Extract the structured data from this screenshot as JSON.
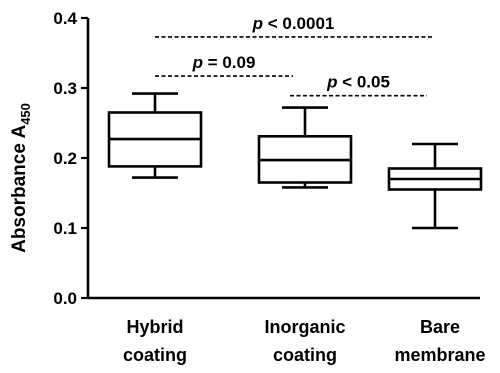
{
  "chart_data": {
    "type": "box",
    "ylabel": "Absorbance A",
    "ylabel_subscript": "450",
    "ylim": [
      0,
      0.4
    ],
    "yticks": [
      0.0,
      0.1,
      0.2,
      0.3,
      0.4
    ],
    "ytick_labels": [
      "0.0",
      "0.1",
      "0.2",
      "0.3",
      "0.4"
    ],
    "grid": false,
    "categories": [
      {
        "line1": "Hybrid",
        "line2": "coating"
      },
      {
        "line1": "Inorganic",
        "line2": "coating"
      },
      {
        "line1": "Bare",
        "line2": "membrane"
      }
    ],
    "boxes": [
      {
        "min": 0.172,
        "q1": 0.188,
        "median": 0.227,
        "q3": 0.265,
        "max": 0.292
      },
      {
        "min": 0.158,
        "q1": 0.165,
        "median": 0.197,
        "q3": 0.231,
        "max": 0.272
      },
      {
        "min": 0.1,
        "q1": 0.155,
        "median": 0.17,
        "q3": 0.185,
        "max": 0.22
      }
    ],
    "significance": [
      {
        "from": 0,
        "to": 2,
        "y": 0.373,
        "p_symbol": "p",
        "text": " < 0.0001"
      },
      {
        "from": 0,
        "to": 1,
        "y": 0.317,
        "p_symbol": "p",
        "text": " = 0.09"
      },
      {
        "from": 1,
        "to": 2,
        "y": 0.289,
        "p_symbol": "p",
        "text": " < 0.05"
      }
    ]
  }
}
